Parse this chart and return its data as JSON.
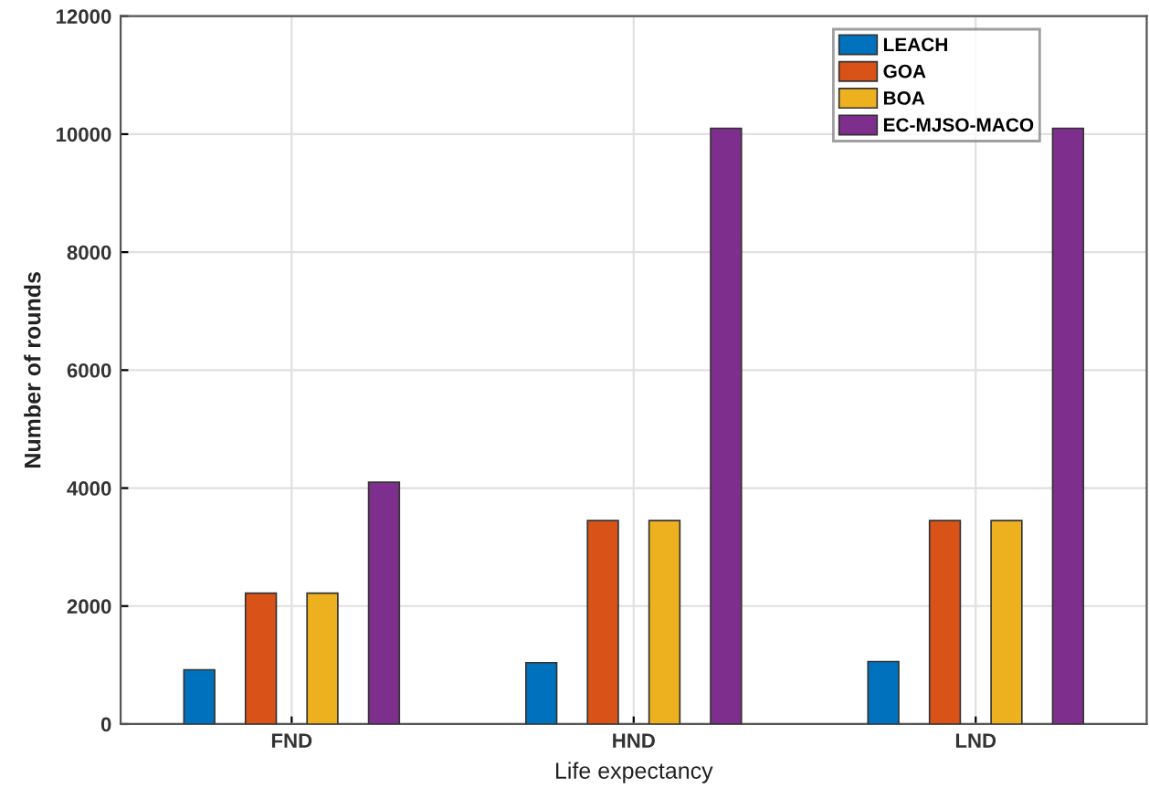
{
  "chart_data": {
    "type": "bar",
    "xlabel": "Life expectancy",
    "ylabel": "Number of rounds",
    "categories": [
      "FND",
      "HND",
      "LND"
    ],
    "series": [
      {
        "name": "LEACH",
        "color": "#0072bd",
        "values": [
          920,
          1040,
          1060
        ]
      },
      {
        "name": "GOA",
        "color": "#d95319",
        "values": [
          2220,
          3450,
          3450
        ]
      },
      {
        "name": "BOA",
        "color": "#edb120",
        "values": [
          2220,
          3450,
          3450
        ]
      },
      {
        "name": "EC-MJSO-MACO",
        "color": "#7e2f8e",
        "values": [
          4100,
          10100,
          10100
        ]
      }
    ],
    "ylim": [
      0,
      12000
    ],
    "yticks": [
      0,
      2000,
      4000,
      6000,
      8000,
      10000,
      12000
    ],
    "grid": true,
    "legend": "top right"
  }
}
